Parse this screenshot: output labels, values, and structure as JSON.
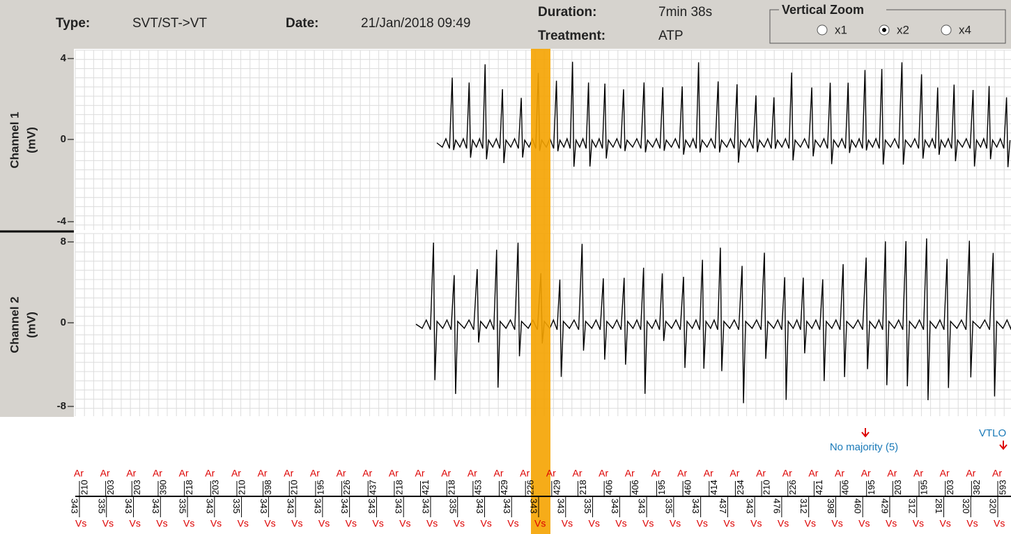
{
  "header": {
    "type_label": "Type:",
    "type": "SVT/ST->VT",
    "date_label": "Date:",
    "date": "21/Jan/2018 09:49",
    "duration_label": "Duration:",
    "duration": "7min 38s",
    "treatment_label": "Treatment:",
    "treatment": "ATP"
  },
  "zoom": {
    "title": "Vertical Zoom",
    "options": [
      "x1",
      "x2",
      "x4"
    ],
    "selected": 1
  },
  "channels": [
    {
      "label": "Channel 1",
      "unit": "(mV)",
      "ticks": [
        "4",
        "0",
        "-4"
      ]
    },
    {
      "label": "Channel 2",
      "unit": "(mV)",
      "ticks": [
        "8",
        "0",
        "-8"
      ]
    }
  ],
  "annotations": {
    "no_majority": "No majority (5)",
    "vtlo": "VTLO"
  },
  "markers": {
    "atrial_label": "Ar",
    "ventricular_label": "Vs",
    "atrial_intervals": [
      "210",
      "203",
      "203",
      "390",
      "218",
      "203",
      "210",
      "398",
      "210",
      "195",
      "226",
      "437",
      "218",
      "421",
      "218",
      "453",
      "429",
      "226",
      "429",
      "218",
      "406",
      "406",
      "195",
      "460",
      "414",
      "234",
      "210",
      "226",
      "421",
      "406",
      "195",
      "203",
      "195",
      "203",
      "382",
      "593"
    ],
    "ventricular_intervals": [
      "343",
      "335",
      "343",
      "343",
      "335",
      "343",
      "335",
      "343",
      "343",
      "343",
      "343",
      "343",
      "343",
      "343",
      "335",
      "343",
      "343",
      "343",
      "343",
      "335",
      "343",
      "343",
      "335",
      "343",
      "437",
      "343",
      "476",
      "312",
      "398",
      "460",
      "429",
      "312",
      "281",
      "320",
      "320"
    ]
  }
}
